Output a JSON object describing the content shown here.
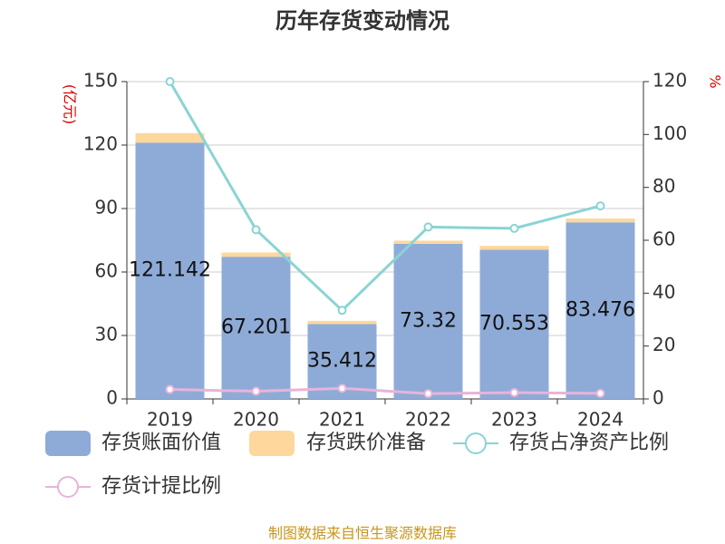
{
  "chart_data": {
    "type": "bar",
    "title": "历年存货变动情况",
    "categories": [
      "2019",
      "2020",
      "2021",
      "2022",
      "2023",
      "2024"
    ],
    "y_label": "(亿元)",
    "y2_label": "%",
    "ylim": [
      0,
      150
    ],
    "yticks": [
      0,
      30,
      60,
      90,
      120,
      150
    ],
    "y2lim": [
      0,
      120
    ],
    "y2ticks": [
      0,
      20,
      40,
      60,
      80,
      100,
      120
    ],
    "grid": true,
    "stacked": true,
    "series": [
      {
        "name": "存货账面价值",
        "color": "#8eabd8",
        "type": "bar",
        "values": [
          121.142,
          67.201,
          35.412,
          73.32,
          70.553,
          83.476
        ],
        "show_labels": true
      },
      {
        "name": "存货跌价准备",
        "color": "#fdd79c",
        "type": "bar",
        "values": [
          4.5,
          2.0,
          1.5,
          1.5,
          1.8,
          1.8
        ]
      },
      {
        "name": "存货占净资产比例",
        "color": "#8ad4d4",
        "type": "line",
        "axis": "y2",
        "values": [
          120,
          64,
          33.5,
          65,
          64.5,
          73
        ]
      },
      {
        "name": "存货计提比例",
        "color": "#e8b4d8",
        "type": "line",
        "axis": "y2",
        "values": [
          3.6,
          2.9,
          4.0,
          2.0,
          2.4,
          2.1
        ]
      }
    ],
    "source": "制图数据来自恒生聚源数据库"
  }
}
